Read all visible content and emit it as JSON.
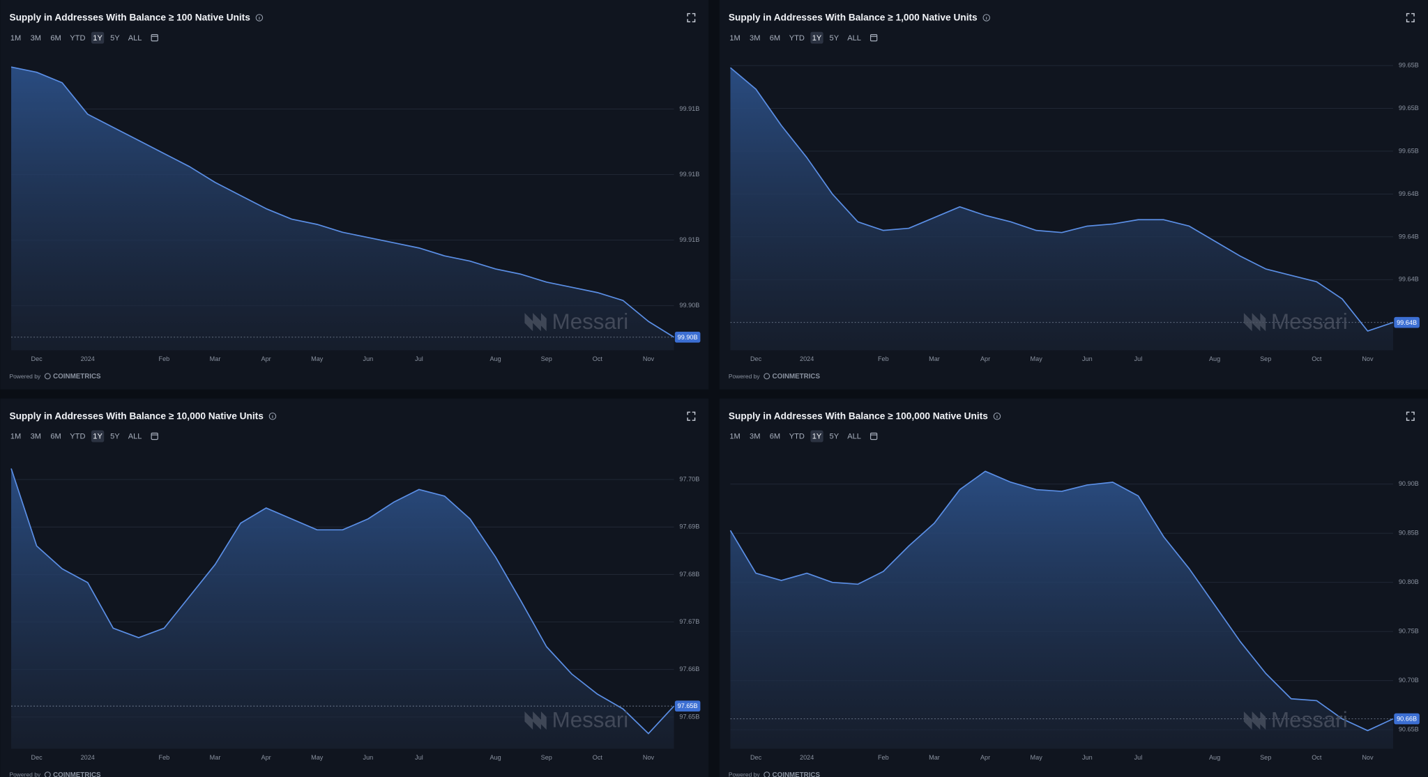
{
  "controls": {
    "ranges": [
      "1M",
      "3M",
      "6M",
      "YTD",
      "1Y",
      "5Y",
      "ALL"
    ]
  },
  "footer": {
    "powered_by": "Powered by",
    "logo": "COINMETRICS"
  },
  "watermark": "Messari",
  "chart_data": [
    {
      "type": "area",
      "title": "Supply in Addresses With Balance ≥ 100 Native Units",
      "color": "#5b8fe6",
      "categories": [
        null,
        "Dec",
        null,
        "2024",
        null,
        null,
        "Feb",
        null,
        "Mar",
        null,
        "Apr",
        null,
        "May",
        null,
        "Jun",
        null,
        "Jul",
        null,
        null,
        "Aug",
        null,
        "Sep",
        null,
        "Oct",
        null,
        "Nov",
        null
      ],
      "values": [
        99.914,
        99.9138,
        99.9134,
        99.9122,
        99.9117,
        99.9112,
        99.9107,
        99.9102,
        99.9096,
        99.9091,
        99.9086,
        99.9082,
        99.908,
        99.9077,
        99.9075,
        99.9073,
        99.9071,
        99.9068,
        99.9066,
        99.9063,
        99.9061,
        99.9058,
        99.9056,
        99.9054,
        99.9051,
        99.9043,
        99.9037
      ],
      "last_value_label": "99.90B",
      "ylim": [
        99.9032,
        99.9143
      ],
      "yticks": [
        {
          "value": 99.9124,
          "label": "99.91B"
        },
        {
          "value": 99.9099,
          "label": "99.91B"
        },
        {
          "value": 99.9074,
          "label": "99.91B"
        },
        {
          "value": 99.9049,
          "label": "99.90B"
        }
      ],
      "grid": true
    },
    {
      "type": "area",
      "title": "Supply in Addresses With Balance ≥ 1,000 Native Units",
      "color": "#5b8fe6",
      "categories": [
        null,
        "Dec",
        null,
        "2024",
        null,
        null,
        "Feb",
        null,
        "Mar",
        null,
        "Apr",
        null,
        "May",
        null,
        "Jun",
        null,
        "Jul",
        null,
        null,
        "Aug",
        null,
        "Sep",
        null,
        "Oct",
        null,
        "Nov",
        null
      ],
      "values": [
        99.6504,
        99.6494,
        99.6477,
        99.6462,
        99.6445,
        99.6432,
        99.6428,
        99.6429,
        99.6434,
        99.6439,
        99.6435,
        99.6432,
        99.6428,
        99.6427,
        99.643,
        99.6431,
        99.6433,
        99.6433,
        99.643,
        99.6423,
        99.6416,
        99.641,
        99.6407,
        99.6404,
        99.6396,
        99.6381,
        99.6385
      ],
      "last_value_label": "99.64B",
      "ylim": [
        99.6372,
        99.6508
      ],
      "yticks": [
        {
          "value": 99.6505,
          "label": "99.65B"
        },
        {
          "value": 99.6485,
          "label": "99.65B"
        },
        {
          "value": 99.6465,
          "label": "99.65B"
        },
        {
          "value": 99.6445,
          "label": "99.64B"
        },
        {
          "value": 99.6425,
          "label": "99.64B"
        },
        {
          "value": 99.6405,
          "label": "99.64B"
        }
      ],
      "grid": true
    },
    {
      "type": "area",
      "title": "Supply in Addresses With Balance ≥ 10,000 Native Units",
      "color": "#5b8fe6",
      "categories": [
        null,
        "Dec",
        null,
        "2024",
        null,
        null,
        "Feb",
        null,
        "Mar",
        null,
        "Apr",
        null,
        "May",
        null,
        "Jun",
        null,
        "Jul",
        null,
        null,
        "Aug",
        null,
        "Sep",
        null,
        "Oct",
        null,
        "Nov",
        null
      ],
      "values": [
        97.7023,
        97.686,
        97.6812,
        97.6783,
        97.6687,
        97.6667,
        97.6687,
        97.6754,
        97.6821,
        97.6908,
        97.694,
        97.6917,
        97.6894,
        97.6894,
        97.6917,
        97.6952,
        97.6979,
        97.6965,
        97.6917,
        97.6837,
        97.6744,
        97.6648,
        97.659,
        97.6548,
        97.6517,
        97.6465,
        97.6523
      ],
      "last_value_label": "97.65B",
      "ylim": [
        97.6433,
        97.7046
      ],
      "yticks": [
        {
          "value": 97.7,
          "label": "97.70B"
        },
        {
          "value": 97.69,
          "label": "97.69B"
        },
        {
          "value": 97.68,
          "label": "97.68B"
        },
        {
          "value": 97.67,
          "label": "97.67B"
        },
        {
          "value": 97.66,
          "label": "97.66B"
        },
        {
          "value": 97.65,
          "label": "97.65B"
        }
      ],
      "grid": true
    },
    {
      "type": "area",
      "title": "Supply in Addresses With Balance ≥ 100,000 Native Units",
      "color": "#5b8fe6",
      "categories": [
        null,
        "Dec",
        null,
        "2024",
        null,
        null,
        "Feb",
        null,
        "Mar",
        null,
        "Apr",
        null,
        "May",
        null,
        "Jun",
        null,
        "Jul",
        null,
        null,
        "Aug",
        null,
        "Sep",
        null,
        "Oct",
        null,
        "Nov",
        null
      ],
      "values": [
        90.8528,
        90.8093,
        90.8019,
        90.8093,
        90.8,
        90.7981,
        90.8111,
        90.837,
        90.8602,
        90.8944,
        90.913,
        90.9019,
        90.8944,
        90.8926,
        90.8991,
        90.9019,
        90.888,
        90.8463,
        90.8139,
        90.7769,
        90.7398,
        90.7074,
        90.6815,
        90.6796,
        90.6611,
        90.6491,
        90.6611
      ],
      "last_value_label": "90.66B",
      "ylim": [
        90.6306,
        90.9269
      ],
      "yticks": [
        {
          "value": 90.9,
          "label": "90.90B"
        },
        {
          "value": 90.85,
          "label": "90.85B"
        },
        {
          "value": 90.8,
          "label": "90.80B"
        },
        {
          "value": 90.75,
          "label": "90.75B"
        },
        {
          "value": 90.7,
          "label": "90.70B"
        },
        {
          "value": 90.65,
          "label": "90.65B"
        }
      ],
      "grid": true
    }
  ]
}
